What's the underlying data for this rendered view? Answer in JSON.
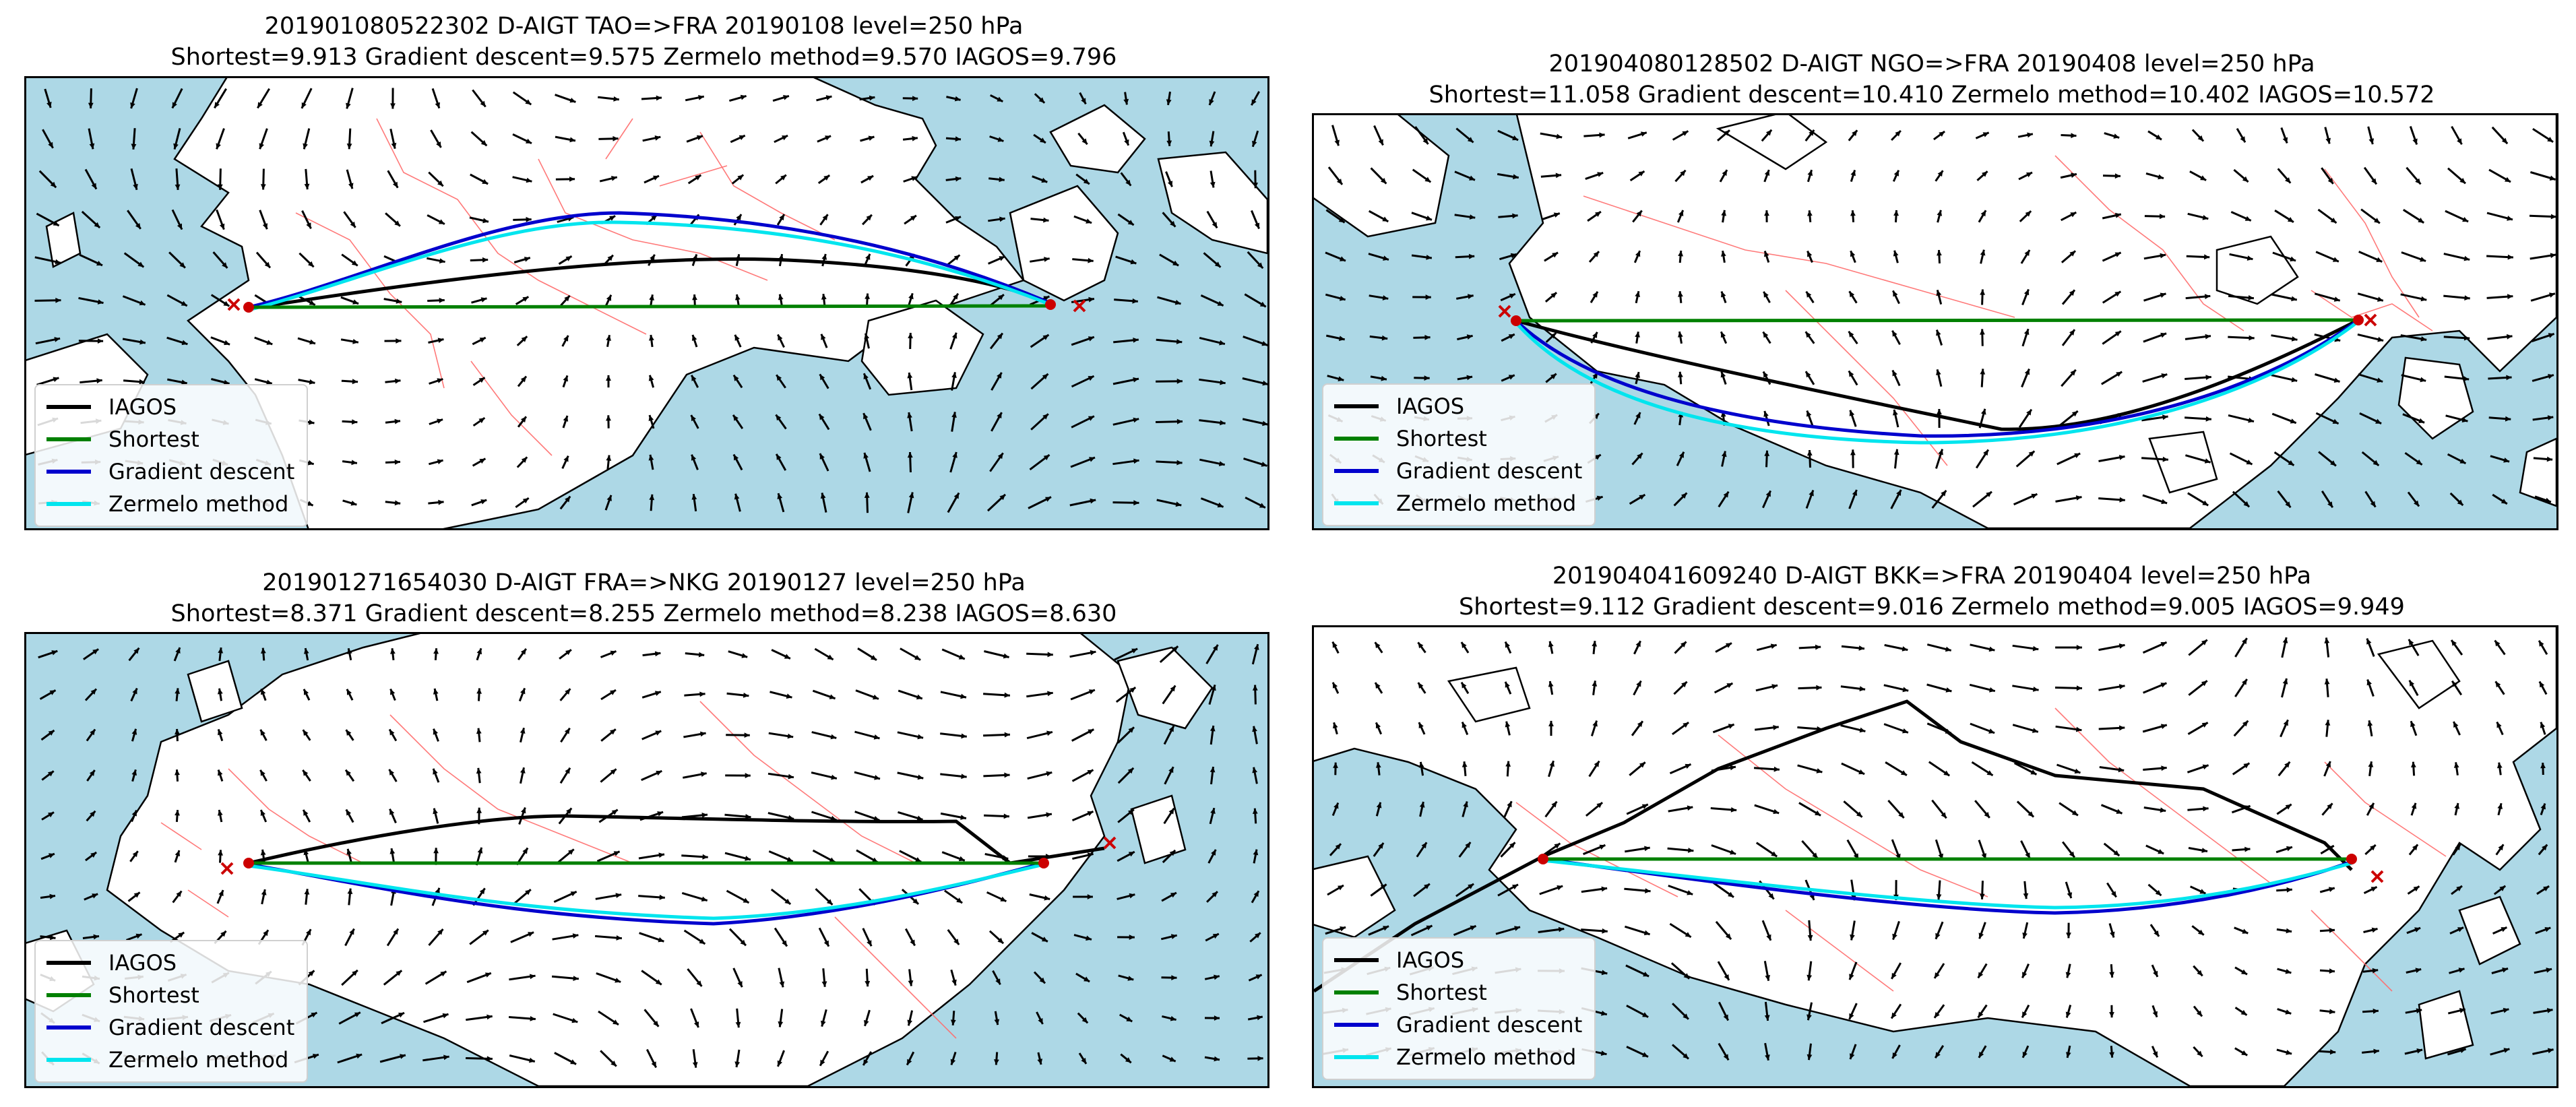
{
  "colors": {
    "water": "#add8e6",
    "land": "#ffffff",
    "border": "#ff6b6b",
    "wind_arrow": "#000000",
    "endpoint_marker": "#cc0000",
    "iagos": "#000000",
    "shortest": "#008000",
    "gradient_descent": "#0000cd",
    "zermelo": "#00e5ee"
  },
  "legend_labels": {
    "iagos": "IAGOS",
    "shortest": "Shortest",
    "gradient_descent": "Gradient descent",
    "zermelo": "Zermelo method"
  },
  "panels": [
    {
      "title_line1": "201901080522302 D-AIGT TAO=>FRA  20190108 level=250 hPa",
      "title_line2": "Shortest=9.913 Gradient descent=9.575 Zermelo method=9.570 IAGOS=9.796",
      "origin": "TAO",
      "destination": "FRA",
      "date": "20190108",
      "level_hpa": 250,
      "times": {
        "shortest": 9.913,
        "gradient_descent": 9.575,
        "zermelo": 9.57,
        "iagos": 9.796
      }
    },
    {
      "title_line1": "201904080128502 D-AIGT NGO=>FRA  20190408 level=250 hPa",
      "title_line2": "Shortest=11.058 Gradient descent=10.410 Zermelo method=10.402 IAGOS=10.572",
      "origin": "NGO",
      "destination": "FRA",
      "date": "20190408",
      "level_hpa": 250,
      "times": {
        "shortest": 11.058,
        "gradient_descent": 10.41,
        "zermelo": 10.402,
        "iagos": 10.572
      }
    },
    {
      "title_line1": "201901271654030 D-AIGT FRA=>NKG  20190127 level=250 hPa",
      "title_line2": "Shortest=8.371 Gradient descent=8.255 Zermelo method=8.238 IAGOS=8.630",
      "origin": "FRA",
      "destination": "NKG",
      "date": "20190127",
      "level_hpa": 250,
      "times": {
        "shortest": 8.371,
        "gradient_descent": 8.255,
        "zermelo": 8.238,
        "iagos": 8.63
      }
    },
    {
      "title_line1": "201904041609240 D-AIGT BKK=>FRA  20190404 level=250 hPa",
      "title_line2": "Shortest=9.112 Gradient descent=9.016 Zermelo method=9.005 IAGOS=9.949",
      "origin": "BKK",
      "destination": "FRA",
      "date": "20190404",
      "level_hpa": 250,
      "times": {
        "shortest": 9.112,
        "gradient_descent": 9.016,
        "zermelo": 9.005,
        "iagos": 9.949
      }
    }
  ]
}
